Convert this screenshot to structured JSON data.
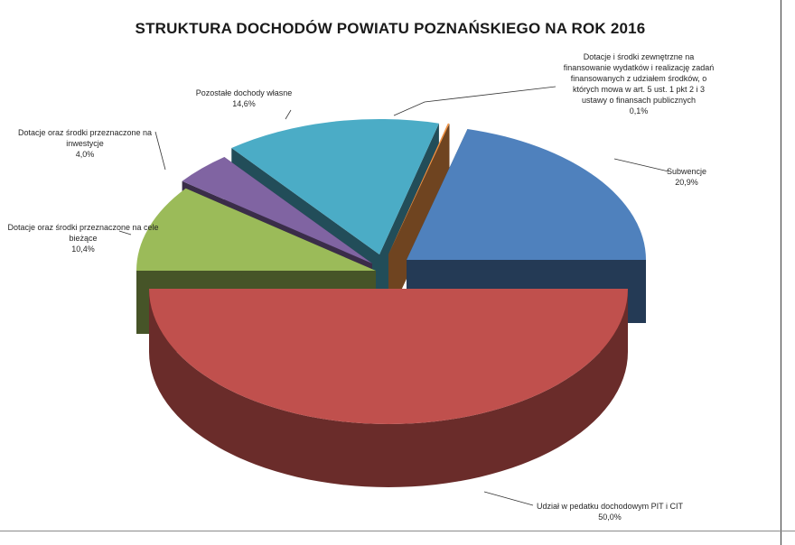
{
  "chart_data": {
    "type": "pie",
    "title": "STRUKTURA DOCHODÓW POWIATU POZNAŃSKIEGO NA ROK 2016",
    "slices": [
      {
        "label": "Udział w podatku dochodowym PIT i CIT",
        "value": 50.0,
        "value_label": "50,0%",
        "color": "#c0504d"
      },
      {
        "label": "Dotacje oraz środki przeznaczone na cele bieżące",
        "value": 10.4,
        "value_label": "10,4%",
        "color": "#9bbb59"
      },
      {
        "label": "Dotacje oraz środki przeznaczone na inwestycje",
        "value": 4.0,
        "value_label": "4,0%",
        "color": "#8064a2"
      },
      {
        "label": "Pozostałe dochody własne",
        "value": 14.6,
        "value_label": "14,6%",
        "color": "#4bacc6"
      },
      {
        "label": "Dotacje i środki zewnętrzne na finansowanie wydatków i realizację zadań finansowanych z udziałem środków, o których mowa w art. 5 ust. 1 pkt 2 i 3 ustawy o finansach publicznych",
        "value": 0.1,
        "value_label": "0,1%",
        "color": "#f79646"
      },
      {
        "label": "Subwencje",
        "value": 20.9,
        "value_label": "20,9%",
        "color": "#4f81bd"
      }
    ],
    "label_lines": {
      "pit": [
        "Udział w pedatku dochodowym PIT i CIT"
      ],
      "biezace": [
        "Dotacje oraz środki przeznaczone na cele",
        "bieżące"
      ],
      "inwestycje": [
        "Dotacje oraz środki przeznaczone na",
        "inwestycje"
      ],
      "pozostale": [
        "Pozostałe dochody własne"
      ],
      "zewnetrzne": [
        "Dotacje i środki zewnętrzne na",
        "finansowanie wydatków i realizację zadań",
        "finansowanych z udziałem środków, o",
        "których mowa w art. 5 ust. 1 pkt 2 i 3",
        "ustawy o finansach publicznych"
      ],
      "subwencje": [
        "Subwencje"
      ]
    }
  }
}
